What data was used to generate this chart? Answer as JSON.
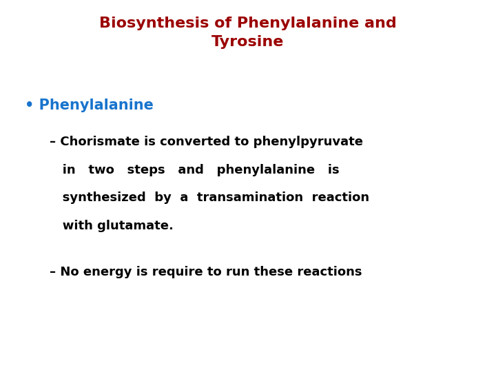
{
  "title_line1": "Biosynthesis of Phenylalanine and",
  "title_line2": "Tyrosine",
  "title_color": "#9B0000",
  "title_fontsize": 16,
  "title_fontweight": "bold",
  "background_color": "#FFFFFF",
  "bullet_label": "• Phenylalanine",
  "bullet_color": "#1874CD",
  "bullet_fontsize": 15,
  "bullet_fontweight": "bold",
  "dash1_line1": "– Chorismate is converted to phenylpyruvate",
  "dash1_line2": "   in   two   steps   and   phenylalanine   is",
  "dash1_line3": "   synthesized  by  a  transamination  reaction",
  "dash1_line4": "   with glutamate.",
  "dash1_color": "#000000",
  "dash1_fontsize": 13,
  "dash1_fontweight": "bold",
  "dash2_text": "– No energy is require to run these reactions",
  "dash2_color": "#000000",
  "dash2_fontsize": 13,
  "dash2_fontweight": "bold",
  "fig_width": 7.2,
  "fig_height": 5.4,
  "dpi": 100
}
